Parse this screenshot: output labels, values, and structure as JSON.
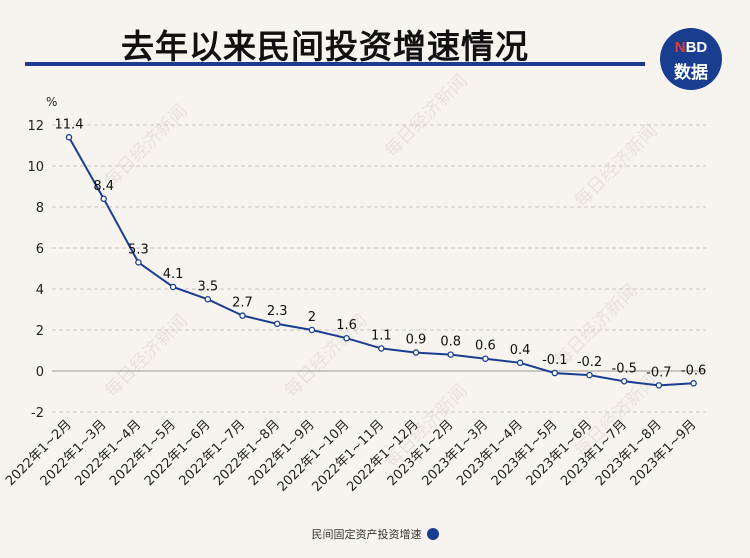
{
  "header": {
    "title": "去年以来民间投资增速情况",
    "logo_top_accent": "N",
    "logo_top_rest": "BD",
    "logo_bottom": "数据",
    "watermark": "每日经济新闻"
  },
  "colors": {
    "line": "#1a3e8f",
    "title_rule": "#1a3e8f",
    "logo_bg": "#1a3e8f",
    "logo_accent": "#e23a3a",
    "background": "#f7f4ef",
    "grid": "#c9c6c0"
  },
  "chart_data": {
    "type": "line",
    "ylabel": "%",
    "ylim": [
      -2,
      12
    ],
    "yticks": [
      -2,
      0,
      2,
      4,
      6,
      8,
      10,
      12
    ],
    "grid": true,
    "legend_position": "bottom",
    "categories": [
      "2022年1~2月",
      "2022年1~3月",
      "2022年1~4月",
      "2022年1~5月",
      "2022年1~6月",
      "2022年1~7月",
      "2022年1~8月",
      "2022年1~9月",
      "2022年1~10月",
      "2022年1~11月",
      "2022年1~12月",
      "2023年1~2月",
      "2023年1~3月",
      "2023年1~4月",
      "2023年1~5月",
      "2023年1~6月",
      "2023年1~7月",
      "2023年1~8月",
      "2023年1~9月"
    ],
    "series": [
      {
        "name": "民间固定资产投资增速",
        "values": [
          11.4,
          8.4,
          5.3,
          4.1,
          3.5,
          2.7,
          2.3,
          2,
          1.6,
          1.1,
          0.9,
          0.8,
          0.6,
          0.4,
          -0.1,
          -0.2,
          -0.5,
          -0.7,
          -0.6
        ],
        "labels": [
          "11.4",
          "8.4",
          "5.3",
          "4.1",
          "3.5",
          "2.7",
          "2.3",
          "2",
          "1.6",
          "1.1",
          "0.9",
          "0.8",
          "0.6",
          "0.4",
          "-0.1",
          "-0.2",
          "-0.5",
          "-0.7",
          "-0.6"
        ]
      }
    ]
  }
}
